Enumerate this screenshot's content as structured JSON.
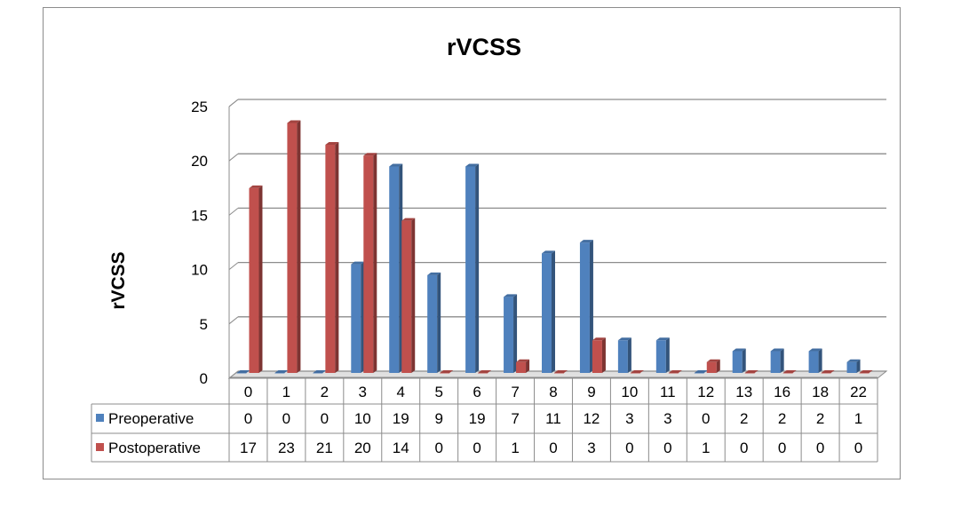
{
  "chart_data": {
    "type": "bar",
    "title": "rVCSS",
    "xlabel": "",
    "ylabel": "rVCSS",
    "ylim": [
      0,
      25
    ],
    "yticks": [
      0,
      5,
      10,
      15,
      20,
      25
    ],
    "grid": true,
    "legend": "data-table",
    "categories": [
      "0",
      "1",
      "2",
      "3",
      "4",
      "5",
      "6",
      "7",
      "8",
      "9",
      "10",
      "11",
      "12",
      "13",
      "16",
      "18",
      "22"
    ],
    "series": [
      {
        "name": "Preoperative",
        "color": "#4f81bd",
        "values": [
          0,
          0,
          0,
          10,
          19,
          9,
          19,
          7,
          11,
          12,
          3,
          3,
          0,
          2,
          2,
          2,
          1
        ]
      },
      {
        "name": "Postoperative",
        "color": "#c0504d",
        "values": [
          17,
          23,
          21,
          20,
          14,
          0,
          0,
          1,
          0,
          3,
          0,
          0,
          1,
          0,
          0,
          0,
          0
        ]
      }
    ]
  }
}
